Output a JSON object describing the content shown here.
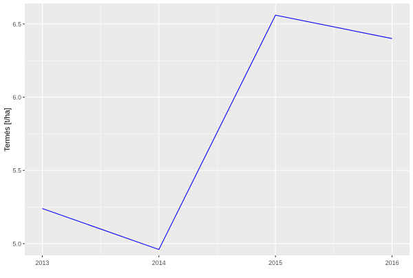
{
  "chart_data": {
    "type": "line",
    "title": "",
    "xlabel": "",
    "ylabel": "Termés [t/ha]",
    "x": [
      2013,
      2014,
      2015,
      2016
    ],
    "series": [
      {
        "values": [
          5.24,
          4.96,
          6.56,
          6.4
        ],
        "color": "#0000ff"
      }
    ],
    "xticks": [
      "2013",
      "2014",
      "2015",
      "2016"
    ],
    "yticks": [
      "5.0",
      "5.5",
      "6.0",
      "6.5"
    ],
    "xlim": [
      2012.85,
      2016.15
    ],
    "ylim": [
      4.92,
      6.64
    ],
    "grid": true,
    "panel_background": "#ebebeb",
    "grid_color": "#ffffff"
  }
}
